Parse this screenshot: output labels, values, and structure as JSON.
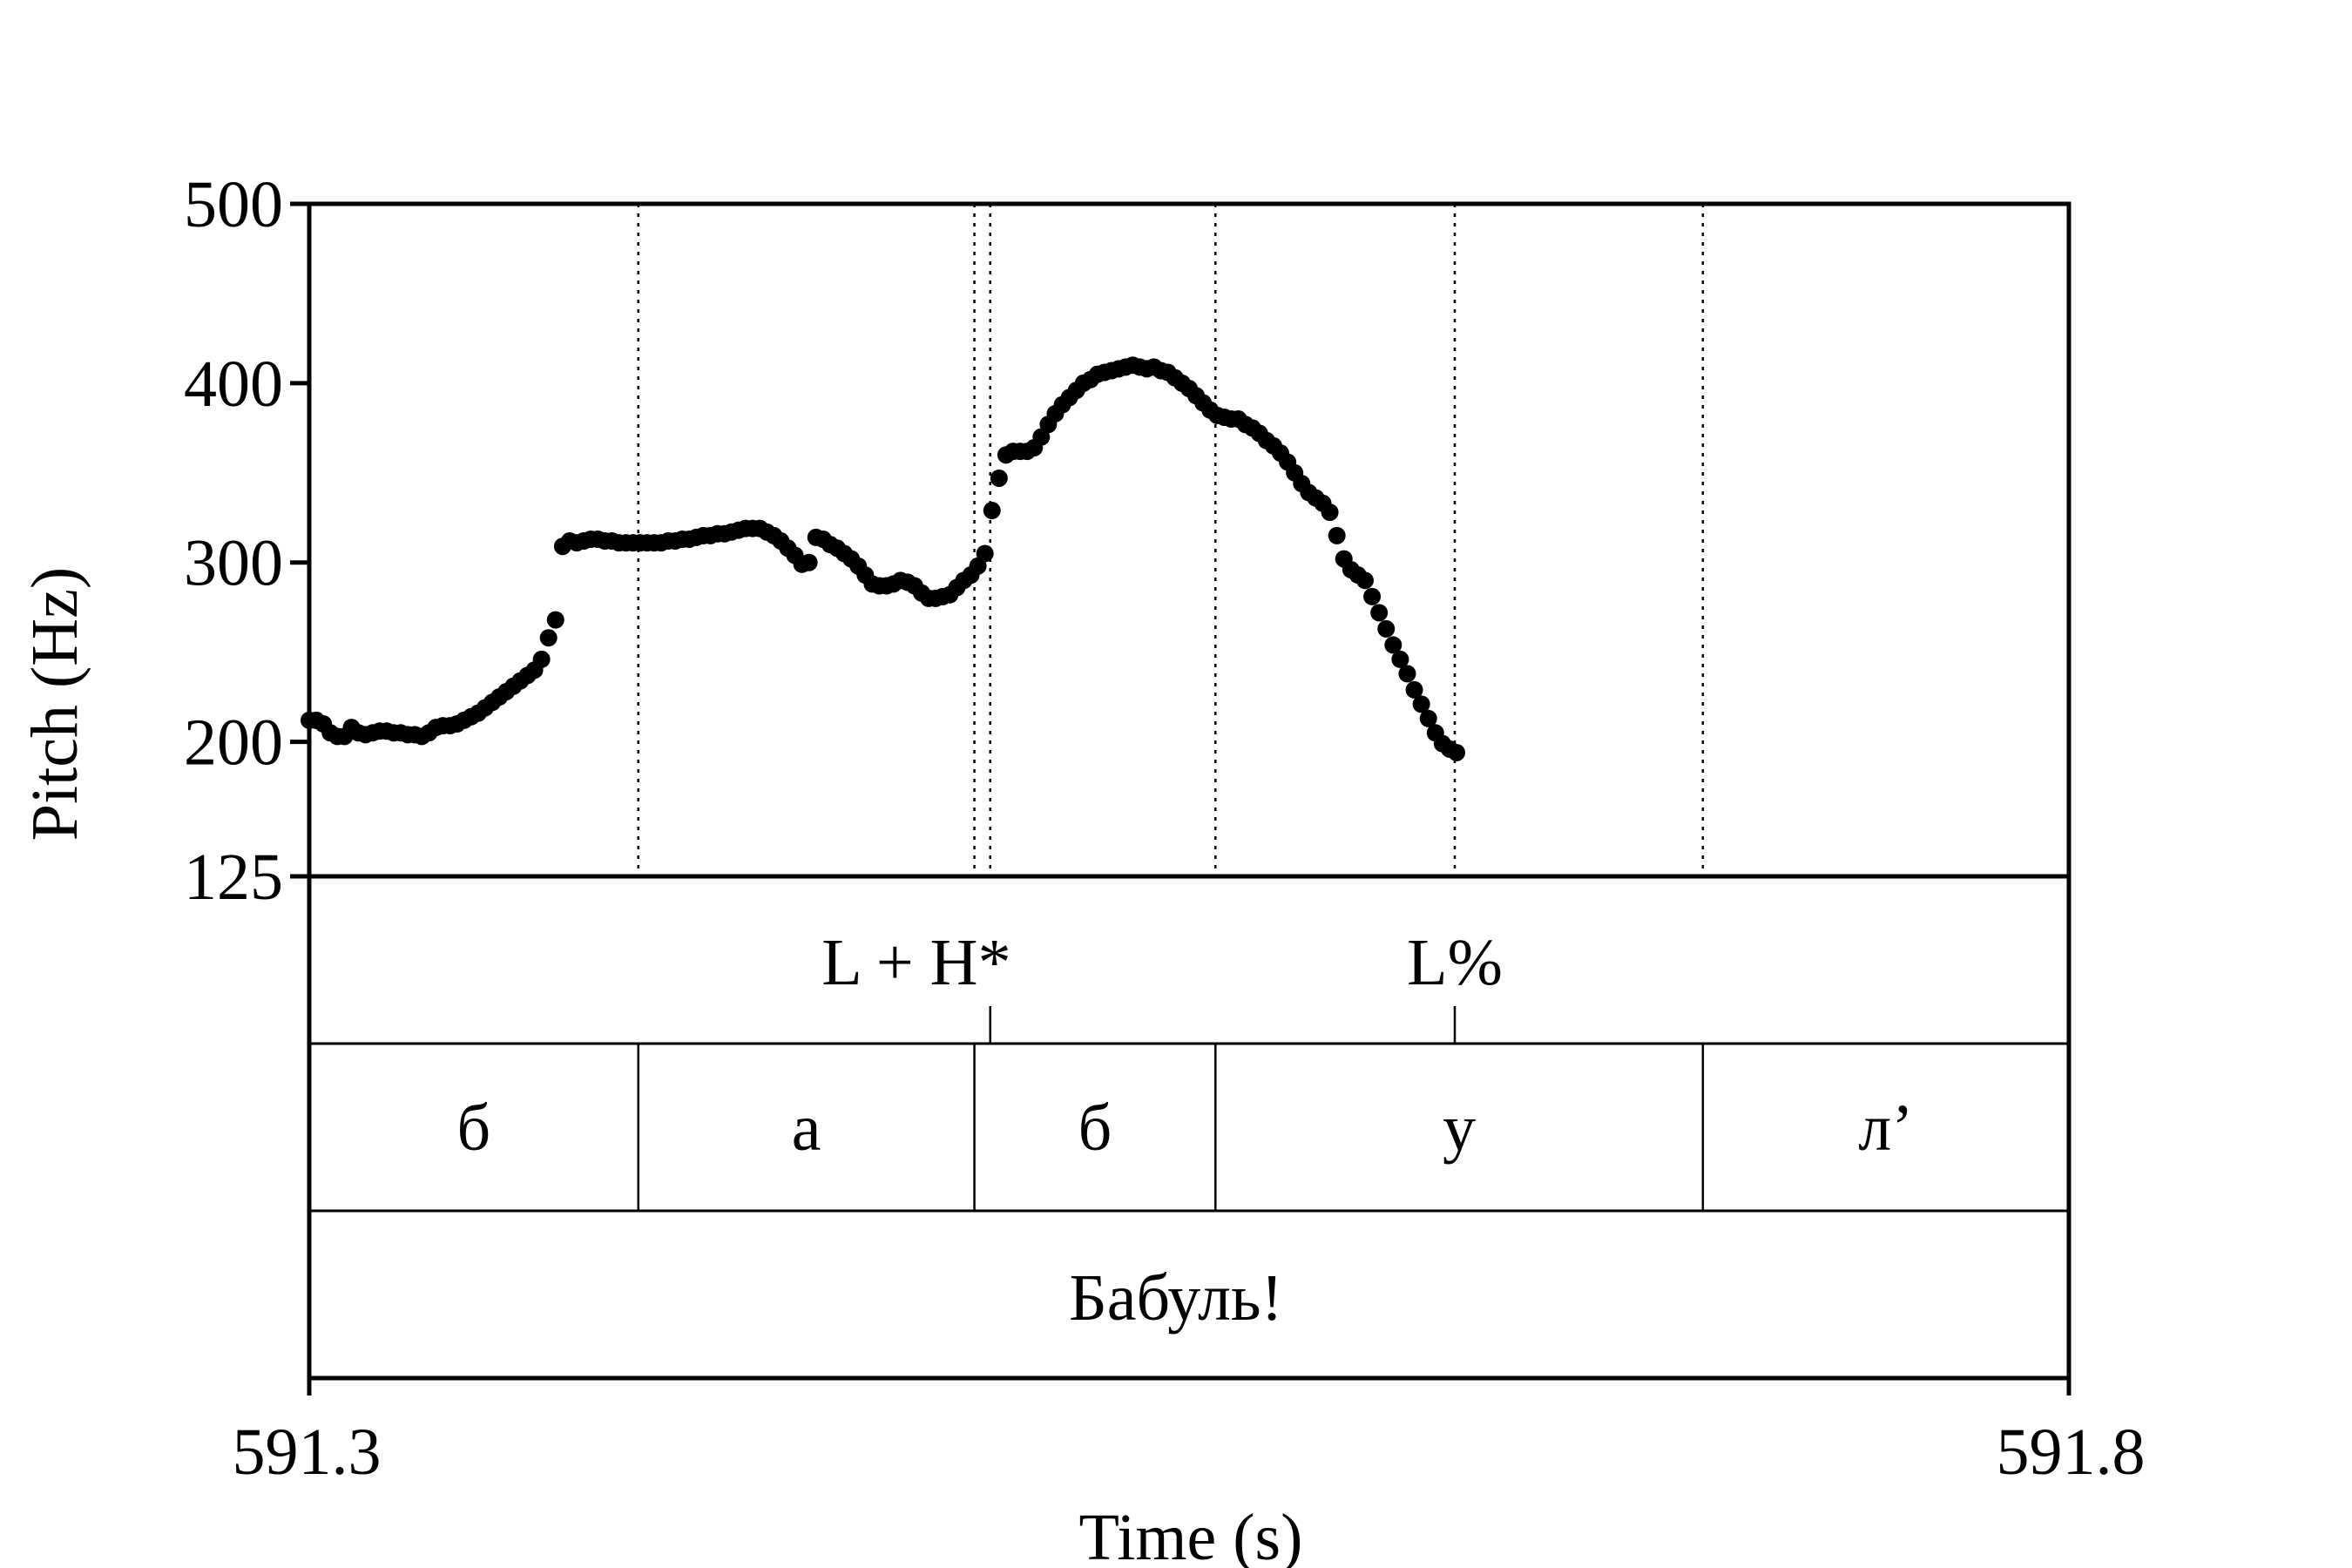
{
  "chart_data": {
    "type": "scatter",
    "title": "",
    "xlabel": "Time (s)",
    "ylabel": "Pitch (Hz)",
    "xlim": [
      591.3,
      591.8
    ],
    "ylim": [
      125,
      500
    ],
    "x_tick_labels": [
      "591.3",
      "591.8"
    ],
    "y_tick_labels": [
      "500",
      "400",
      "300",
      "200",
      "125"
    ],
    "y_ticks": [
      500,
      400,
      300,
      200,
      125
    ],
    "grid": false,
    "point_color": "#000000",
    "series": [
      {
        "points": [
          [
            591.3,
            212
          ],
          [
            591.302,
            212
          ],
          [
            591.304,
            210
          ],
          [
            591.306,
            205
          ],
          [
            591.308,
            203
          ],
          [
            591.31,
            203
          ],
          [
            591.312,
            208
          ],
          [
            591.314,
            205
          ],
          [
            591.316,
            204
          ],
          [
            591.318,
            205
          ],
          [
            591.32,
            206
          ],
          [
            591.322,
            206
          ],
          [
            591.324,
            205
          ],
          [
            591.326,
            205
          ],
          [
            591.328,
            204
          ],
          [
            591.33,
            204
          ],
          [
            591.332,
            203
          ],
          [
            591.334,
            205
          ],
          [
            591.336,
            208
          ],
          [
            591.338,
            209
          ],
          [
            591.34,
            209
          ],
          [
            591.342,
            210
          ],
          [
            591.344,
            212
          ],
          [
            591.346,
            214
          ],
          [
            591.348,
            216
          ],
          [
            591.35,
            219
          ],
          [
            591.352,
            222
          ],
          [
            591.354,
            225
          ],
          [
            591.356,
            228
          ],
          [
            591.358,
            231
          ],
          [
            591.36,
            234
          ],
          [
            591.362,
            237
          ],
          [
            591.364,
            240
          ],
          [
            591.366,
            246
          ],
          [
            591.368,
            258
          ],
          [
            591.37,
            268
          ],
          [
            591.372,
            309
          ],
          [
            591.374,
            312
          ],
          [
            591.376,
            311
          ],
          [
            591.378,
            312
          ],
          [
            591.38,
            313
          ],
          [
            591.382,
            313
          ],
          [
            591.384,
            312
          ],
          [
            591.386,
            312
          ],
          [
            591.388,
            311
          ],
          [
            591.39,
            311
          ],
          [
            591.392,
            311
          ],
          [
            591.394,
            311
          ],
          [
            591.396,
            311
          ],
          [
            591.398,
            311
          ],
          [
            591.4,
            311
          ],
          [
            591.402,
            312
          ],
          [
            591.404,
            312
          ],
          [
            591.406,
            313
          ],
          [
            591.408,
            313
          ],
          [
            591.41,
            314
          ],
          [
            591.412,
            315
          ],
          [
            591.414,
            315
          ],
          [
            591.416,
            316
          ],
          [
            591.418,
            316
          ],
          [
            591.42,
            317
          ],
          [
            591.422,
            318
          ],
          [
            591.424,
            319
          ],
          [
            591.426,
            319
          ],
          [
            591.428,
            319
          ],
          [
            591.43,
            317
          ],
          [
            591.432,
            315
          ],
          [
            591.434,
            312
          ],
          [
            591.436,
            308
          ],
          [
            591.438,
            304
          ],
          [
            591.44,
            299
          ],
          [
            591.442,
            300
          ],
          [
            591.444,
            314
          ],
          [
            591.446,
            313
          ],
          [
            591.448,
            310
          ],
          [
            591.45,
            308
          ],
          [
            591.452,
            305
          ],
          [
            591.454,
            302
          ],
          [
            591.456,
            298
          ],
          [
            591.458,
            293
          ],
          [
            591.46,
            288
          ],
          [
            591.462,
            287
          ],
          [
            591.464,
            287
          ],
          [
            591.466,
            288
          ],
          [
            591.468,
            290
          ],
          [
            591.47,
            289
          ],
          [
            591.472,
            287
          ],
          [
            591.474,
            283
          ],
          [
            591.476,
            280
          ],
          [
            591.478,
            280
          ],
          [
            591.48,
            281
          ],
          [
            591.482,
            282
          ],
          [
            591.484,
            286
          ],
          [
            591.486,
            290
          ],
          [
            591.488,
            293
          ],
          [
            591.49,
            298
          ],
          [
            591.492,
            305
          ],
          [
            591.494,
            329
          ],
          [
            591.496,
            347
          ],
          [
            591.498,
            360
          ],
          [
            591.5,
            362
          ],
          [
            591.502,
            362
          ],
          [
            591.504,
            362
          ],
          [
            591.506,
            364
          ],
          [
            591.508,
            370
          ],
          [
            591.51,
            377
          ],
          [
            591.512,
            383
          ],
          [
            591.514,
            388
          ],
          [
            591.516,
            392
          ],
          [
            591.518,
            396
          ],
          [
            591.52,
            400
          ],
          [
            591.522,
            402
          ],
          [
            591.524,
            405
          ],
          [
            591.526,
            406
          ],
          [
            591.528,
            407
          ],
          [
            591.53,
            408
          ],
          [
            591.532,
            409
          ],
          [
            591.534,
            410
          ],
          [
            591.536,
            409
          ],
          [
            591.538,
            408
          ],
          [
            591.54,
            409
          ],
          [
            591.542,
            407
          ],
          [
            591.544,
            406
          ],
          [
            591.546,
            403
          ],
          [
            591.548,
            400
          ],
          [
            591.55,
            397
          ],
          [
            591.552,
            393
          ],
          [
            591.554,
            389
          ],
          [
            591.556,
            385
          ],
          [
            591.558,
            382
          ],
          [
            591.56,
            381
          ],
          [
            591.562,
            380
          ],
          [
            591.564,
            380
          ],
          [
            591.566,
            377
          ],
          [
            591.568,
            375
          ],
          [
            591.57,
            372
          ],
          [
            591.572,
            368
          ],
          [
            591.574,
            365
          ],
          [
            591.576,
            361
          ],
          [
            591.578,
            356
          ],
          [
            591.58,
            350
          ],
          [
            591.582,
            344
          ],
          [
            591.584,
            339
          ],
          [
            591.586,
            336
          ],
          [
            591.588,
            333
          ],
          [
            591.59,
            328
          ],
          [
            591.592,
            315
          ],
          [
            591.594,
            302
          ],
          [
            591.596,
            296
          ],
          [
            591.598,
            293
          ],
          [
            591.6,
            290
          ],
          [
            591.602,
            281
          ],
          [
            591.604,
            272
          ],
          [
            591.606,
            263
          ],
          [
            591.608,
            254
          ],
          [
            591.61,
            246
          ],
          [
            591.612,
            238
          ],
          [
            591.614,
            229
          ],
          [
            591.616,
            221
          ],
          [
            591.618,
            213
          ],
          [
            591.62,
            205
          ],
          [
            591.622,
            199
          ],
          [
            591.624,
            196
          ],
          [
            591.626,
            194
          ]
        ]
      }
    ]
  },
  "tiers": {
    "tones": {
      "marks": [
        591.4935,
        591.6255
      ],
      "labels": [
        {
          "time": 591.4725,
          "text": "L + H*"
        },
        {
          "time": 591.6255,
          "text": "L%"
        }
      ]
    },
    "segments": {
      "boundaries": [
        591.3,
        591.3935,
        591.489,
        591.5575,
        591.696,
        591.8
      ],
      "labels": [
        "б",
        "а",
        "б",
        "у",
        "л’"
      ]
    },
    "word": {
      "text": "Бабуль!"
    }
  }
}
